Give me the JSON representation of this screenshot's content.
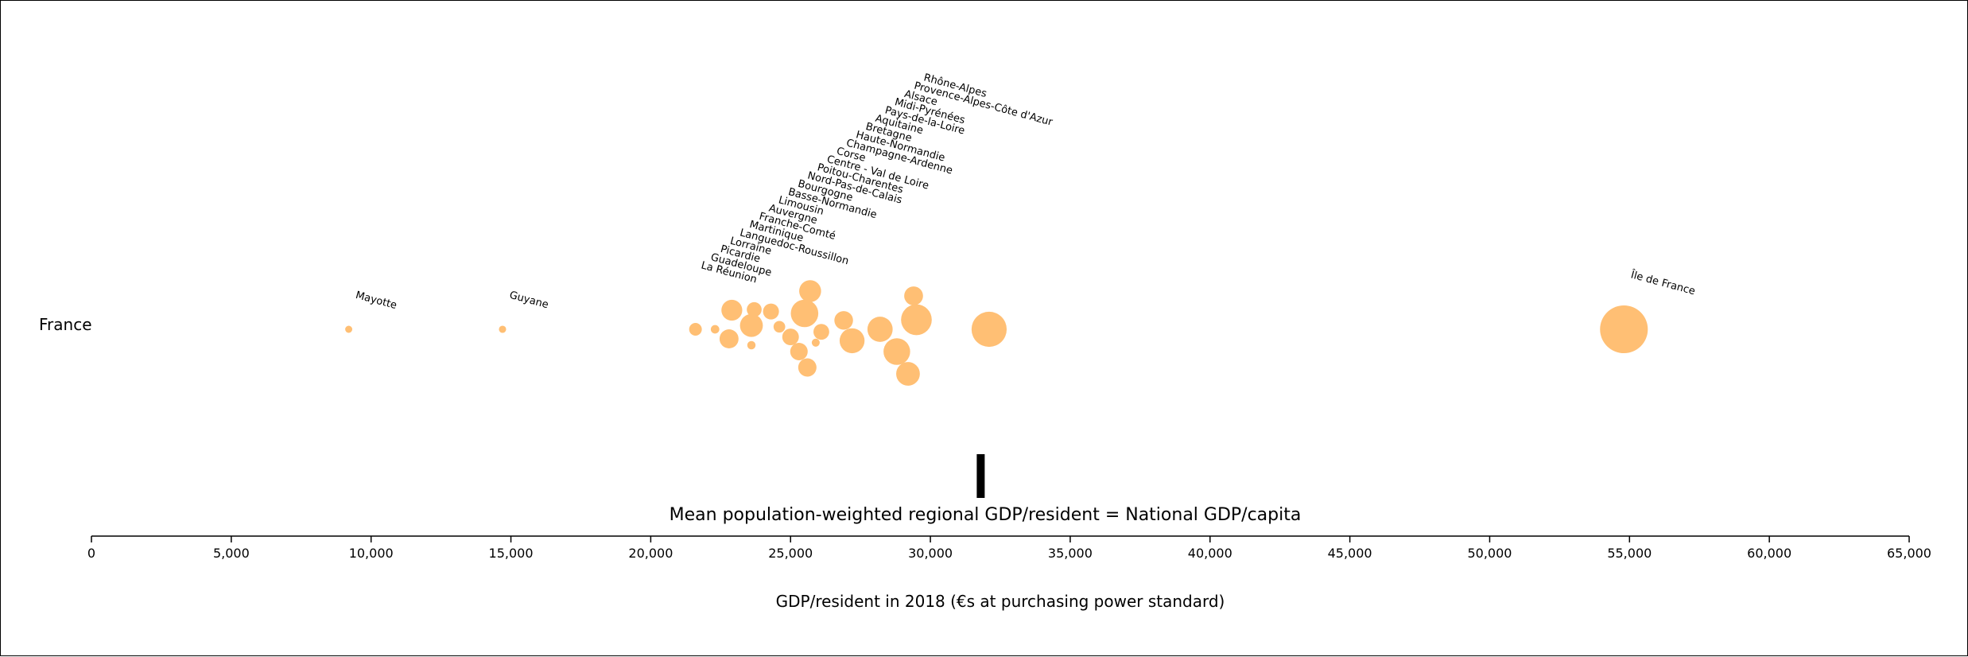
{
  "chart_data": {
    "type": "scatter",
    "subtype": "bubble",
    "country_label": "France",
    "xlabel": "GDP/resident in 2018 (€s at purchasing power standard)",
    "xlim": [
      0,
      65000
    ],
    "xticks": [
      0,
      5000,
      10000,
      15000,
      20000,
      25000,
      30000,
      35000,
      40000,
      45000,
      50000,
      55000,
      60000,
      65000
    ],
    "xtick_labels": [
      "0",
      "5,000",
      "10,000",
      "15,000",
      "20,000",
      "25,000",
      "30,000",
      "35,000",
      "40,000",
      "45,000",
      "50,000",
      "55,000",
      "60,000",
      "65,000"
    ],
    "national_mean": {
      "value": 31800,
      "label": "Mean population-weighted regional GDP/resident = National GDP/capita"
    },
    "bubble_color": "#ffbf74",
    "points": [
      {
        "region": "Mayotte",
        "x": 9200,
        "jitter": 0,
        "population": 0.27
      },
      {
        "region": "Guyane",
        "x": 14700,
        "jitter": 0,
        "population": 0.28
      },
      {
        "region": "La Réunion",
        "x": 21600,
        "jitter": 0,
        "population": 0.86
      },
      {
        "region": "Guadeloupe",
        "x": 22300,
        "jitter": 0,
        "population": 0.39
      },
      {
        "region": "Picardie",
        "x": 22800,
        "jitter": -0.3,
        "population": 1.93
      },
      {
        "region": "Lorraine",
        "x": 22900,
        "jitter": 0.6,
        "population": 2.33
      },
      {
        "region": "Languedoc-Roussillon",
        "x": 23600,
        "jitter": 0.12,
        "population": 2.8
      },
      {
        "region": "Martinique",
        "x": 23600,
        "jitter": -0.5,
        "population": 0.37
      },
      {
        "region": "Franche-Comté",
        "x": 23700,
        "jitter": 0.62,
        "population": 1.18
      },
      {
        "region": "Auvergne",
        "x": 24300,
        "jitter": 0.56,
        "population": 1.36
      },
      {
        "region": "Limousin",
        "x": 24600,
        "jitter": 0.08,
        "population": 0.73
      },
      {
        "region": "Basse-Normandie",
        "x": 25000,
        "jitter": -0.24,
        "population": 1.48
      },
      {
        "region": "Bourgogne",
        "x": 25300,
        "jitter": -0.7,
        "population": 1.64
      },
      {
        "region": "Nord-Pas-de-Calais",
        "x": 25500,
        "jitter": 0.5,
        "population": 4.05
      },
      {
        "region": "Poitou-Charentes",
        "x": 25600,
        "jitter": -1.2,
        "population": 1.79
      },
      {
        "region": "Centre - Val de Loire",
        "x": 25700,
        "jitter": 1.2,
        "population": 2.57
      },
      {
        "region": "Corse",
        "x": 25900,
        "jitter": -0.42,
        "population": 0.34
      },
      {
        "region": "Champagne-Ardenne",
        "x": 26100,
        "jitter": -0.08,
        "population": 1.33
      },
      {
        "region": "Haute-Normandie",
        "x": 26900,
        "jitter": 0.28,
        "population": 1.86
      },
      {
        "region": "Bretagne",
        "x": 27200,
        "jitter": -0.36,
        "population": 3.33
      },
      {
        "region": "Aquitaine",
        "x": 28200,
        "jitter": 0,
        "population": 3.4
      },
      {
        "region": "Pays-de-la-Loire",
        "x": 28800,
        "jitter": -0.7,
        "population": 3.8
      },
      {
        "region": "Midi-Pyrénées",
        "x": 29200,
        "jitter": -1.4,
        "population": 3.0
      },
      {
        "region": "Alsace",
        "x": 29400,
        "jitter": 1.05,
        "population": 1.9
      },
      {
        "region": "Provence-Alpes-Côte d'Azur",
        "x": 29500,
        "jitter": 0.3,
        "population": 5.05
      },
      {
        "region": "Rhône-Alpes",
        "x": 32100,
        "jitter": 0,
        "population": 6.6
      },
      {
        "region": "Île de France",
        "x": 54800,
        "jitter": 0,
        "population": 12.2
      }
    ]
  }
}
